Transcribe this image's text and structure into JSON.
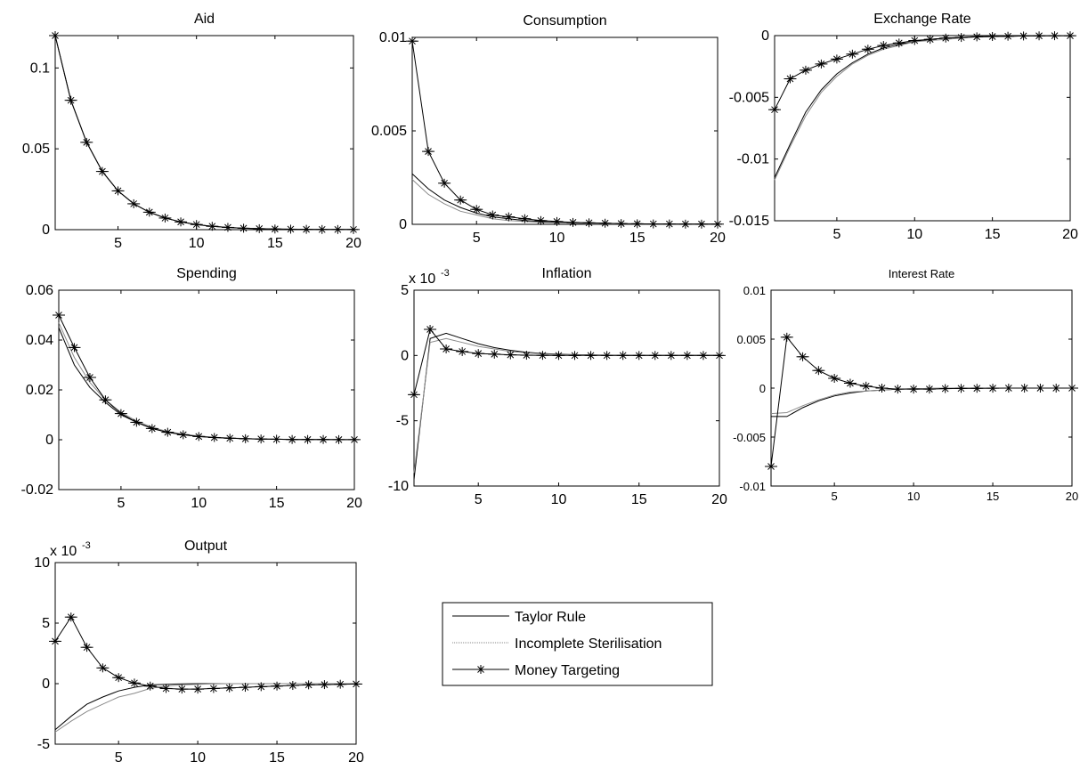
{
  "legend": {
    "entries": [
      {
        "label": "Taylor Rule",
        "color": "#000000",
        "style": "solid",
        "marker": "none"
      },
      {
        "label": "Incomplete Sterilisation",
        "color": "#888888",
        "style": "dotted",
        "marker": "none"
      },
      {
        "label": "Money Targeting",
        "color": "#000000",
        "style": "solid",
        "marker": "star"
      }
    ]
  },
  "chart_data": [
    {
      "type": "line",
      "title": "Aid",
      "xlim": [
        1,
        20
      ],
      "ylim": [
        0,
        0.12
      ],
      "xticks": [
        5,
        10,
        15,
        20
      ],
      "xtick_labels": [
        "5",
        "10",
        "15",
        "20"
      ],
      "yticks": [
        0,
        0.05,
        0.1
      ],
      "ytick_labels": [
        "0",
        "0.05",
        "0.1"
      ],
      "ytick_side": "left",
      "exponent_label": "",
      "x": [
        1,
        2,
        3,
        4,
        5,
        6,
        7,
        8,
        9,
        10,
        11,
        12,
        13,
        14,
        15,
        16,
        17,
        18,
        19,
        20
      ],
      "series": [
        {
          "name": "Taylor Rule",
          "values": [
            0.12,
            0.08,
            0.054,
            0.036,
            0.024,
            0.016,
            0.0108,
            0.0072,
            0.0048,
            0.0032,
            0.0021,
            0.0014,
            0.0009,
            0.0006,
            0.0004,
            0.0003,
            0.0002,
            0.0001,
            0.0001,
            0.0001
          ]
        },
        {
          "name": "Incomplete Sterilisation",
          "values": [
            0.12,
            0.08,
            0.054,
            0.036,
            0.024,
            0.016,
            0.0108,
            0.0072,
            0.0048,
            0.0032,
            0.0021,
            0.0014,
            0.0009,
            0.0006,
            0.0004,
            0.0003,
            0.0002,
            0.0001,
            0.0001,
            0.0001
          ]
        },
        {
          "name": "Money Targeting",
          "values": [
            0.12,
            0.08,
            0.054,
            0.036,
            0.024,
            0.016,
            0.0108,
            0.0072,
            0.0048,
            0.0032,
            0.0021,
            0.0014,
            0.0009,
            0.0006,
            0.0004,
            0.0003,
            0.0002,
            0.0001,
            0.0001,
            0.0001
          ]
        }
      ]
    },
    {
      "type": "line",
      "title": "Consumption",
      "xlim": [
        1,
        20
      ],
      "ylim": [
        0,
        0.01
      ],
      "xticks": [
        5,
        10,
        15,
        20
      ],
      "xtick_labels": [
        "5",
        "10",
        "15",
        "20"
      ],
      "yticks": [
        0,
        0.005,
        0.01
      ],
      "ytick_labels": [
        "0",
        "0.005",
        "0.01"
      ],
      "ytick_side": "left",
      "exponent_label": "",
      "x": [
        1,
        2,
        3,
        4,
        5,
        6,
        7,
        8,
        9,
        10,
        11,
        12,
        13,
        14,
        15,
        16,
        17,
        18,
        19,
        20
      ],
      "series": [
        {
          "name": "Taylor Rule",
          "values": [
            0.0027,
            0.0019,
            0.0013,
            0.0009,
            0.0006,
            0.0004,
            0.0003,
            0.0002,
            0.00015,
            0.0001,
            8e-05,
            6e-05,
            4e-05,
            3e-05,
            2e-05,
            2e-05,
            1e-05,
            1e-05,
            1e-05,
            1e-05
          ]
        },
        {
          "name": "Incomplete Sterilisation",
          "values": [
            0.0024,
            0.0016,
            0.0011,
            0.0007,
            0.0005,
            0.0003,
            0.0002,
            0.00015,
            0.0001,
            8e-05,
            6e-05,
            4e-05,
            3e-05,
            2e-05,
            2e-05,
            1e-05,
            1e-05,
            1e-05,
            1e-05,
            1e-05
          ]
        },
        {
          "name": "Money Targeting",
          "values": [
            0.0098,
            0.0039,
            0.0022,
            0.0013,
            0.0008,
            0.0005,
            0.0004,
            0.0003,
            0.0002,
            0.00015,
            0.0001,
            8e-05,
            6e-05,
            4e-05,
            3e-05,
            2e-05,
            2e-05,
            1e-05,
            1e-05,
            1e-05
          ]
        }
      ]
    },
    {
      "type": "line",
      "title": "Exchange Rate",
      "xlim": [
        1,
        20
      ],
      "ylim": [
        -0.015,
        0
      ],
      "xticks": [
        5,
        10,
        15,
        20
      ],
      "xtick_labels": [
        "5",
        "10",
        "15",
        "20"
      ],
      "yticks": [
        -0.015,
        -0.01,
        -0.005,
        0
      ],
      "ytick_labels": [
        "-0.015",
        "-0.01",
        "-0.005",
        "0"
      ],
      "ytick_side": "left",
      "exponent_label": "",
      "x": [
        1,
        2,
        3,
        4,
        5,
        6,
        7,
        8,
        9,
        10,
        11,
        12,
        13,
        14,
        15,
        16,
        17,
        18,
        19,
        20
      ],
      "series": [
        {
          "name": "Taylor Rule",
          "values": [
            -0.0115,
            -0.0088,
            -0.0062,
            -0.0044,
            -0.0031,
            -0.0022,
            -0.0015,
            -0.001,
            -0.0007,
            -0.0005,
            -0.0003,
            -0.0002,
            -0.00015,
            -0.0001,
            -7e-05,
            -5e-05,
            -3e-05,
            -2e-05,
            -1e-05,
            -1e-05
          ]
        },
        {
          "name": "Incomplete Sterilisation",
          "values": [
            -0.0117,
            -0.009,
            -0.0065,
            -0.0046,
            -0.0033,
            -0.0023,
            -0.0016,
            -0.0011,
            -0.0008,
            -0.0005,
            -0.0004,
            -0.0003,
            -0.0002,
            -0.0001,
            -8e-05,
            -5e-05,
            -3e-05,
            -2e-05,
            -1e-05,
            -1e-05
          ]
        },
        {
          "name": "Money Targeting",
          "values": [
            -0.006,
            -0.0035,
            -0.0028,
            -0.0023,
            -0.0019,
            -0.0015,
            -0.0011,
            -0.0008,
            -0.0006,
            -0.0004,
            -0.0003,
            -0.0002,
            -0.00015,
            -0.0001,
            -7e-05,
            -5e-05,
            -3e-05,
            -2e-05,
            -1e-05,
            -1e-05
          ]
        }
      ]
    },
    {
      "type": "line",
      "title": "Spending",
      "xlim": [
        1,
        20
      ],
      "ylim": [
        -0.02,
        0.06
      ],
      "xticks": [
        5,
        10,
        15,
        20
      ],
      "xtick_labels": [
        "5",
        "10",
        "15",
        "20"
      ],
      "yticks": [
        -0.02,
        0,
        0.02,
        0.04,
        0.06
      ],
      "ytick_labels": [
        "-0.02",
        "0",
        "0.02",
        "0.04",
        "0.06"
      ],
      "ytick_side": "left",
      "exponent_label": "",
      "x": [
        1,
        2,
        3,
        4,
        5,
        6,
        7,
        8,
        9,
        10,
        11,
        12,
        13,
        14,
        15,
        16,
        17,
        18,
        19,
        20
      ],
      "series": [
        {
          "name": "Taylor Rule",
          "values": [
            0.045,
            0.03,
            0.021,
            0.015,
            0.01,
            0.007,
            0.0045,
            0.003,
            0.002,
            0.0013,
            0.0009,
            0.0006,
            0.0004,
            0.0003,
            0.0002,
            0.0001,
            0.0001,
            0.0001,
            5e-05,
            5e-05
          ]
        },
        {
          "name": "Incomplete Sterilisation",
          "values": [
            0.047,
            0.033,
            0.023,
            0.016,
            0.011,
            0.0075,
            0.005,
            0.0033,
            0.0022,
            0.0015,
            0.001,
            0.0007,
            0.0005,
            0.0003,
            0.0002,
            0.0001,
            0.0001,
            0.0001,
            5e-05,
            5e-05
          ]
        },
        {
          "name": "Money Targeting",
          "values": [
            0.05,
            0.037,
            0.025,
            0.016,
            0.0105,
            0.007,
            0.0045,
            0.003,
            0.002,
            0.0013,
            0.0009,
            0.0006,
            0.0004,
            0.0003,
            0.0002,
            0.0001,
            0.0001,
            0.0001,
            5e-05,
            5e-05
          ]
        }
      ]
    },
    {
      "type": "line",
      "title": "Inflation",
      "xlim": [
        1,
        20
      ],
      "ylim": [
        -10,
        5
      ],
      "xticks": [
        5,
        10,
        15,
        20
      ],
      "xtick_labels": [
        "5",
        "10",
        "15",
        "20"
      ],
      "yticks": [
        -10,
        -5,
        0,
        5
      ],
      "ytick_labels": [
        "-10",
        "-5",
        "0",
        "5"
      ],
      "ytick_side": "left",
      "exponent_label": "x 10",
      "exponent_power": "-3",
      "x": [
        1,
        2,
        3,
        4,
        5,
        6,
        7,
        8,
        9,
        10,
        11,
        12,
        13,
        14,
        15,
        16,
        17,
        18,
        19,
        20
      ],
      "series": [
        {
          "name": "Taylor Rule",
          "values": [
            -9.5,
            1.3,
            1.7,
            1.3,
            0.9,
            0.6,
            0.4,
            0.25,
            0.15,
            0.1,
            0.06,
            0.04,
            0.02,
            0.01,
            0.01,
            0,
            0,
            0,
            0,
            0
          ]
        },
        {
          "name": "Incomplete Sterilisation",
          "values": [
            -9.0,
            1.0,
            1.3,
            1.0,
            0.7,
            0.5,
            0.3,
            0.2,
            0.12,
            0.08,
            0.05,
            0.03,
            0.02,
            0.01,
            0.01,
            0,
            0,
            0,
            0,
            0
          ]
        },
        {
          "name": "Money Targeting",
          "values": [
            -3.0,
            2.0,
            0.5,
            0.3,
            0.15,
            0.1,
            0.05,
            0.02,
            0.01,
            0,
            0,
            0,
            0,
            0,
            0,
            0,
            0,
            0,
            0,
            0
          ]
        }
      ]
    },
    {
      "type": "line",
      "title": "Interest Rate",
      "xlim": [
        1,
        20
      ],
      "ylim": [
        -0.01,
        0.01
      ],
      "xticks": [
        5,
        10,
        15,
        20
      ],
      "xtick_labels": [
        "5",
        "10",
        "15",
        "20"
      ],
      "yticks": [
        -0.01,
        -0.005,
        0,
        0.005,
        0.01
      ],
      "ytick_labels": [
        "-0.01",
        "-0.005",
        "0",
        "0.005",
        "0.01"
      ],
      "ytick_side": "left",
      "exponent_label": "",
      "x": [
        1,
        2,
        3,
        4,
        5,
        6,
        7,
        8,
        9,
        10,
        11,
        12,
        13,
        14,
        15,
        16,
        17,
        18,
        19,
        20
      ],
      "series": [
        {
          "name": "Taylor Rule",
          "values": [
            -0.0029,
            -0.0029,
            -0.002,
            -0.0013,
            -0.0008,
            -0.0005,
            -0.0003,
            -0.0002,
            -0.0001,
            -7e-05,
            -4e-05,
            -3e-05,
            -2e-05,
            -1e-05,
            0,
            0,
            0,
            0,
            0,
            0
          ]
        },
        {
          "name": "Incomplete Sterilisation",
          "values": [
            -0.0026,
            -0.0025,
            -0.0018,
            -0.0012,
            -0.0007,
            -0.0004,
            -0.0003,
            -0.0002,
            -0.0001,
            -6e-05,
            -4e-05,
            -2e-05,
            -1e-05,
            0,
            0,
            0,
            0,
            0,
            0,
            0
          ]
        },
        {
          "name": "Money Targeting",
          "values": [
            -0.008,
            0.0052,
            0.0032,
            0.0018,
            0.001,
            0.0005,
            0.0002,
            0,
            -0.0001,
            -0.0001,
            -0.0001,
            -5e-05,
            -3e-05,
            -2e-05,
            -1e-05,
            0,
            0,
            0,
            0,
            0
          ]
        }
      ]
    },
    {
      "type": "line",
      "title": "Output",
      "xlim": [
        1,
        20
      ],
      "ylim": [
        -5,
        10
      ],
      "xticks": [
        5,
        10,
        15,
        20
      ],
      "xtick_labels": [
        "5",
        "10",
        "15",
        "20"
      ],
      "yticks": [
        -5,
        0,
        5,
        10
      ],
      "ytick_labels": [
        "-5",
        "0",
        "5",
        "10"
      ],
      "ytick_side": "left",
      "exponent_label": "x 10",
      "exponent_power": "-3",
      "x": [
        1,
        2,
        3,
        4,
        5,
        6,
        7,
        8,
        9,
        10,
        11,
        12,
        13,
        14,
        15,
        16,
        17,
        18,
        19,
        20
      ],
      "series": [
        {
          "name": "Taylor Rule",
          "values": [
            -3.8,
            -2.7,
            -1.7,
            -1.1,
            -0.6,
            -0.3,
            -0.1,
            -0.05,
            -0.02,
            0,
            0,
            0,
            0,
            0,
            0,
            0,
            0,
            0,
            0,
            0
          ]
        },
        {
          "name": "Incomplete Sterilisation",
          "values": [
            -4.0,
            -3.1,
            -2.3,
            -1.7,
            -1.1,
            -0.8,
            -0.4,
            -0.2,
            -0.1,
            -0.05,
            -0.02,
            0,
            0,
            0,
            0,
            0,
            0,
            0,
            0,
            0
          ]
        },
        {
          "name": "Money Targeting",
          "values": [
            3.5,
            5.5,
            3.0,
            1.3,
            0.5,
            0.05,
            -0.2,
            -0.4,
            -0.45,
            -0.45,
            -0.4,
            -0.35,
            -0.3,
            -0.25,
            -0.2,
            -0.15,
            -0.1,
            -0.08,
            -0.05,
            -0.03
          ]
        }
      ]
    }
  ]
}
